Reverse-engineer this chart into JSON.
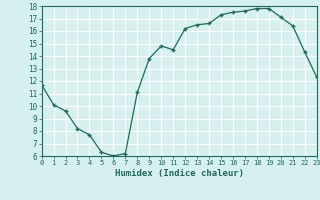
{
  "x": [
    0,
    1,
    2,
    3,
    4,
    5,
    6,
    7,
    8,
    9,
    10,
    11,
    12,
    13,
    14,
    15,
    16,
    17,
    18,
    19,
    20,
    21,
    22,
    23
  ],
  "y": [
    11.7,
    10.1,
    9.6,
    8.2,
    7.7,
    6.3,
    6.0,
    6.2,
    11.1,
    13.8,
    14.8,
    14.5,
    16.2,
    16.5,
    16.6,
    17.3,
    17.5,
    17.6,
    17.8,
    17.8,
    17.1,
    16.4,
    14.3,
    12.3
  ],
  "xlabel": "Humidex (Indice chaleur)",
  "xlim": [
    0,
    23
  ],
  "ylim": [
    6,
    18
  ],
  "yticks": [
    6,
    7,
    8,
    9,
    10,
    11,
    12,
    13,
    14,
    15,
    16,
    17,
    18
  ],
  "xticks": [
    0,
    1,
    2,
    3,
    4,
    5,
    6,
    7,
    8,
    9,
    10,
    11,
    12,
    13,
    14,
    15,
    16,
    17,
    18,
    19,
    20,
    21,
    22,
    23
  ],
  "line_color": "#1a6b5a",
  "marker": "+",
  "bg_color": "#d6f0ef",
  "grid_color": "#ffffff"
}
